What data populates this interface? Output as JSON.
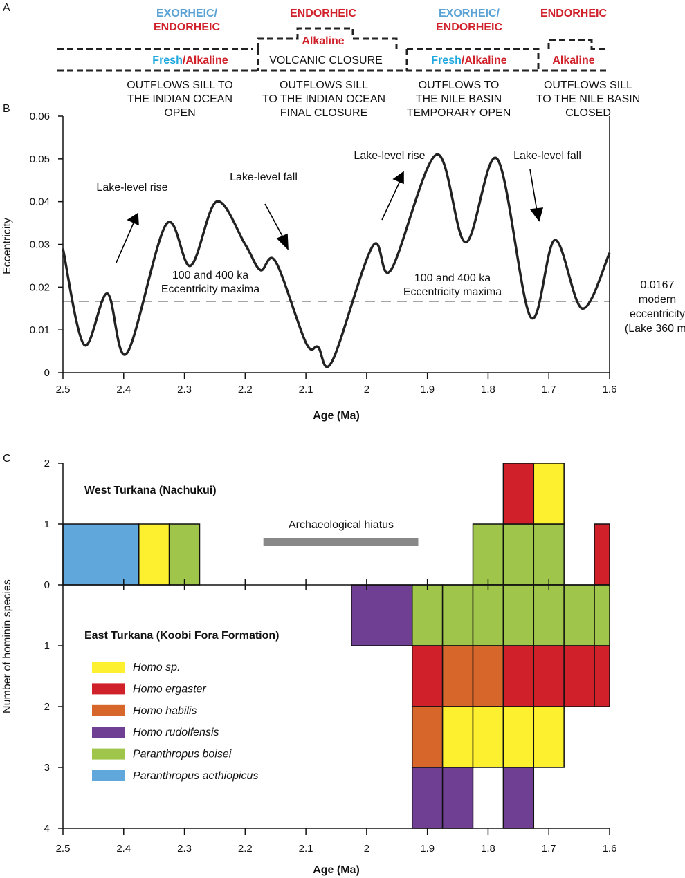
{
  "panel_labels": {
    "a": "A",
    "b": "B",
    "c": "C"
  },
  "panel_a": {
    "colors": {
      "exorheic": "#5aa2d6",
      "endorheic": "#d0202a",
      "fresh": "#1fa8df",
      "alkaline": "#d0202a"
    },
    "phases": [
      {
        "top1": "EXORHEIC/",
        "top2": "ENDORHEIC",
        "chem_fresh": "Fresh",
        "chem_sep": "/",
        "chem_alk": "Alkaline",
        "desc": [
          "OUTFLOWS SILL TO",
          "THE INDIAN OCEAN",
          "OPEN"
        ]
      },
      {
        "top1": "ENDORHEIC",
        "chem_alk": "Alkaline",
        "closure": "VOLCANIC CLOSURE",
        "desc": [
          "OUTFLOWS SILL",
          "TO THE INDIAN OCEAN",
          "FINAL CLOSURE"
        ]
      },
      {
        "top1": "EXORHEIC/",
        "top2": "ENDORHEIC",
        "chem_fresh": "Fresh",
        "chem_sep": "/",
        "chem_alk": "Alkaline",
        "desc": [
          "OUTFLOWS TO",
          "THE NILE BASIN",
          "TEMPORARY OPEN"
        ]
      },
      {
        "top1": "ENDORHEIC",
        "chem_alk": "Alkaline",
        "desc": [
          "OUTFLOWS SILL",
          "TO THE NILE BASIN",
          "CLOSED"
        ]
      }
    ]
  },
  "chart_data": [
    {
      "type": "line",
      "xlabel": "Age (Ma)",
      "ylabel": "Eccentricity",
      "xlim": [
        2.5,
        1.6
      ],
      "ylim": [
        0,
        0.06
      ],
      "xticks": [
        "2.5",
        "2.4",
        "2.3",
        "2.2",
        "2.1",
        "2",
        "1.9",
        "1.8",
        "1.7",
        "1.6"
      ],
      "yticks": [
        "0",
        "0.01",
        "0.02",
        "0.03",
        "0.04",
        "0.05",
        "0.06"
      ],
      "x_reversed": true,
      "grid": false,
      "series": [
        {
          "x": [
            2.5,
            2.465,
            2.427,
            2.395,
            2.33,
            2.29,
            2.247,
            2.2,
            2.175,
            2.15,
            2.1,
            2.08,
            2.057,
            1.99,
            1.96,
            1.885,
            1.837,
            1.785,
            1.73,
            1.69,
            1.645,
            1.6
          ],
          "y": [
            0.029,
            0.0065,
            0.0185,
            0.0045,
            0.0347,
            0.025,
            0.04,
            0.03,
            0.024,
            0.026,
            0.007,
            0.006,
            0.0026,
            0.0296,
            0.024,
            0.051,
            0.0305,
            0.05,
            0.013,
            0.031,
            0.015,
            0.028
          ]
        }
      ],
      "reference_line": {
        "y": 0.0167,
        "label": [
          "0.0167",
          "modern",
          "eccentricity",
          "(Lake 360 m)"
        ]
      },
      "annotations": {
        "rise1": "Lake-level rise",
        "fall1": "Lake-level fall",
        "rise2": "Lake-level rise",
        "fall2": "Lake-level fall",
        "maxima1": [
          "100 and 400 ka",
          "Eccentricity maxima"
        ],
        "maxima2": [
          "100 and 400 ka",
          "Eccentricity maxima"
        ]
      }
    },
    {
      "type": "bar",
      "xlabel": "Age (Ma)",
      "ylabel": "Number of hominin species",
      "xlim": [
        2.5,
        1.6
      ],
      "xticks": [
        "2.5",
        "2.4",
        "2.3",
        "2.2",
        "2.1",
        "2",
        "1.9",
        "1.8",
        "1.7",
        "1.6"
      ],
      "yticks_up": [
        "0",
        "1",
        "2"
      ],
      "yticks_down": [
        "1",
        "2",
        "3",
        "4"
      ],
      "west_label": "West Turkana (Nachukui)",
      "east_label": "East Turkana (Koobi Fora Formation)",
      "hiatus": {
        "label": "Archaeological hiatus",
        "from": 2.17,
        "to": 1.915,
        "color": "#888888"
      },
      "species": [
        {
          "key": "homo_sp",
          "name": "Homo sp.",
          "color": "#fdf02e"
        },
        {
          "key": "ergaster",
          "name": "Homo ergaster",
          "color": "#d0202a"
        },
        {
          "key": "habilis",
          "name": "Homo habilis",
          "color": "#d7662b"
        },
        {
          "key": "rudolfensis",
          "name": "Homo rudolfensis",
          "color": "#6f3f94"
        },
        {
          "key": "boisei",
          "name": "Paranthropus boisei",
          "color": "#9fc54a"
        },
        {
          "key": "aethiopicus",
          "name": "Paranthropus aethiopicus",
          "color": "#60a8dc"
        }
      ],
      "west": [
        {
          "from": 2.5,
          "to": 2.375,
          "stack": [
            "aethiopicus"
          ]
        },
        {
          "from": 2.375,
          "to": 2.325,
          "stack": [
            "homo_sp"
          ]
        },
        {
          "from": 2.325,
          "to": 2.275,
          "stack": [
            "boisei"
          ]
        },
        {
          "from": 1.825,
          "to": 1.775,
          "stack": [
            "boisei"
          ]
        },
        {
          "from": 1.775,
          "to": 1.725,
          "stack": [
            "boisei",
            "ergaster"
          ]
        },
        {
          "from": 1.725,
          "to": 1.675,
          "stack": [
            "boisei",
            "homo_sp"
          ]
        },
        {
          "from": 1.625,
          "to": 1.6,
          "stack": [
            "ergaster"
          ]
        }
      ],
      "east": [
        {
          "from": 2.025,
          "to": 1.925,
          "stack": [
            "rudolfensis"
          ]
        },
        {
          "from": 1.925,
          "to": 1.875,
          "stack": [
            "boisei",
            "ergaster",
            "habilis",
            "rudolfensis"
          ]
        },
        {
          "from": 1.875,
          "to": 1.825,
          "stack": [
            "boisei",
            "habilis",
            "homo_sp",
            "rudolfensis"
          ]
        },
        {
          "from": 1.825,
          "to": 1.775,
          "stack": [
            "boisei",
            "habilis",
            "homo_sp"
          ]
        },
        {
          "from": 1.775,
          "to": 1.725,
          "stack": [
            "boisei",
            "ergaster",
            "homo_sp",
            "rudolfensis"
          ]
        },
        {
          "from": 1.725,
          "to": 1.675,
          "stack": [
            "boisei",
            "ergaster",
            "homo_sp"
          ]
        },
        {
          "from": 1.675,
          "to": 1.625,
          "stack": [
            "boisei",
            "ergaster"
          ]
        },
        {
          "from": 1.625,
          "to": 1.6,
          "stack": [
            "boisei",
            "ergaster"
          ]
        }
      ]
    }
  ]
}
